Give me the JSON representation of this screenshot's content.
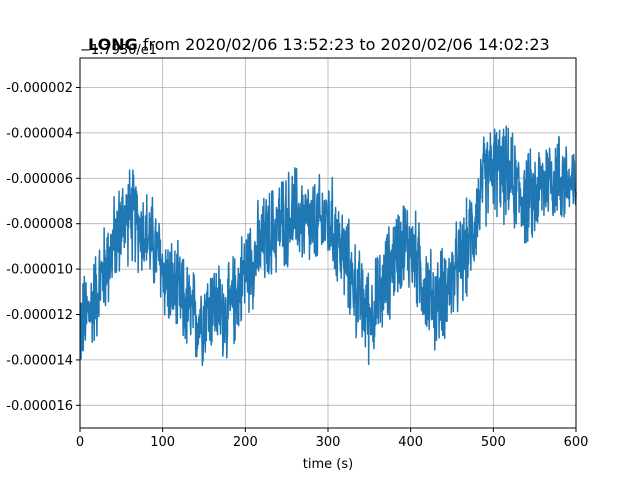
{
  "chart_data": {
    "type": "line",
    "title_bold": "LONG",
    "title_rest": " from 2020/02/06 13:52:23 to 2020/02/06 14:02:23",
    "offset_text": "−1.7930/e1",
    "xlabel": "time (s)",
    "ylabel": "",
    "xlim": [
      0,
      600
    ],
    "ylim": [
      -1.7e-05,
      -7e-07
    ],
    "grid": true,
    "x_ticks": [
      "0",
      "100",
      "200",
      "300",
      "400",
      "500",
      "600"
    ],
    "y_ticks": [
      "-0.000002",
      "-0.000004",
      "-0.000006",
      "-0.000008",
      "-0.000010",
      "-0.000012",
      "-0.000014",
      "-0.000016"
    ],
    "series": [
      {
        "color": "#1f77b4",
        "x": [
          0,
          10,
          20,
          30,
          40,
          50,
          60,
          70,
          80,
          90,
          100,
          110,
          120,
          130,
          140,
          150,
          160,
          170,
          180,
          190,
          200,
          210,
          220,
          230,
          240,
          250,
          260,
          270,
          280,
          290,
          300,
          310,
          320,
          330,
          340,
          350,
          360,
          370,
          380,
          390,
          400,
          410,
          420,
          430,
          440,
          450,
          460,
          470,
          480,
          490,
          500,
          510,
          520,
          530,
          540,
          550,
          560,
          570,
          580,
          590,
          600
        ],
        "y": [
          -1.25e-05,
          -1.2e-05,
          -1.1e-05,
          -1e-05,
          -9e-06,
          -8e-06,
          -7.5e-06,
          -8e-06,
          -8.5e-06,
          -9e-06,
          -1e-05,
          -1.08e-05,
          -1.12e-05,
          -1.18e-05,
          -1.22e-05,
          -1.2e-05,
          -1.15e-05,
          -1.18e-05,
          -1.2e-05,
          -1.1e-05,
          -1e-05,
          -9.5e-06,
          -9e-06,
          -8.5e-06,
          -8e-06,
          -7.8e-06,
          -7.5e-06,
          -7.8e-06,
          -8.2e-06,
          -8e-06,
          -7.8e-06,
          -8.5e-06,
          -9.5e-06,
          -1.05e-05,
          -1.15e-05,
          -1.2e-05,
          -1.15e-05,
          -1.05e-05,
          -9.5e-06,
          -8.8e-06,
          -9e-06,
          -1e-05,
          -1.1e-05,
          -1.15e-05,
          -1.1e-05,
          -1.05e-05,
          -9.8e-06,
          -9e-06,
          -7.5e-06,
          -6e-06,
          -5.5e-06,
          -5.8e-06,
          -6e-06,
          -6.5e-06,
          -7e-06,
          -6.8e-06,
          -6.2e-06,
          -5.8e-06,
          -6e-06,
          -6.2e-06,
          -6.5e-06
        ],
        "noise_amplitude": 2.5e-06
      }
    ]
  }
}
